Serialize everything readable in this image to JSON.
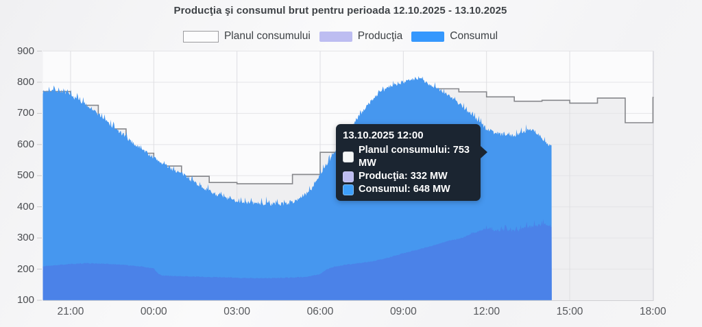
{
  "title": "Producţia şi consumul brut pentru perioada 12.10.2025 - 13.10.2025",
  "legend": {
    "items": [
      {
        "label": "Planul consumului",
        "color": "#fcfcfd",
        "border": "#9b9b9e"
      },
      {
        "label": "Producţia",
        "color": "#bdbdf1"
      },
      {
        "label": "Consumul",
        "color": "#3598fd"
      }
    ]
  },
  "tooltip": {
    "header": "13.10.2025 12:00",
    "rows": [
      {
        "text": "Planul consumului: 753 MW",
        "swatch_color": "#f5f7f7"
      },
      {
        "text": "Producţia: 332 MW",
        "swatch_color": "#bdbdf1"
      },
      {
        "text": "Consumul: 648 MW",
        "swatch_color": "#3e9ffb"
      }
    ]
  },
  "chart_data": {
    "type": "area",
    "title": "Producţia şi consumul brut pentru perioada 12.10.2025 - 13.10.2025",
    "xlabel": "",
    "ylabel": "MW",
    "ylim": [
      100,
      900
    ],
    "y_ticks": [
      100,
      200,
      300,
      400,
      500,
      600,
      700,
      800,
      900
    ],
    "x_ticks": [
      "21:00",
      "00:00",
      "03:00",
      "06:00",
      "09:00",
      "12:00",
      "15:00",
      "18:00"
    ],
    "x_hours_are_offsets_from": "20:00 on 12.10.2025",
    "x_domain_hours": [
      0,
      22.1
    ],
    "grid": true,
    "legend_position": "top",
    "measured_series_end": "~14:20 on 13.10.2025",
    "series": [
      {
        "name": "Planul consumului",
        "type": "step",
        "line_color": "#85868a",
        "fill_color": "rgba(140,140,150,0.10)",
        "points_h_mw": [
          [
            0,
            770
          ],
          [
            1,
            726
          ],
          [
            2,
            650
          ],
          [
            3,
            572
          ],
          [
            4,
            531
          ],
          [
            5,
            498
          ],
          [
            6,
            478
          ],
          [
            7,
            474
          ],
          [
            8,
            474
          ],
          [
            9,
            504
          ],
          [
            10,
            575
          ],
          [
            11,
            650
          ],
          [
            12,
            737
          ],
          [
            13,
            779
          ],
          [
            14,
            779
          ],
          [
            15,
            769
          ],
          [
            16,
            753
          ],
          [
            17,
            739
          ],
          [
            18,
            742
          ],
          [
            19,
            733
          ],
          [
            20,
            749
          ],
          [
            21,
            670
          ],
          [
            22,
            751
          ]
        ],
        "end_h": 22.1
      },
      {
        "name": "Consumul",
        "type": "area",
        "fill_color": "#4697ef",
        "noise_amp_mw": 13,
        "points_h_mw": [
          [
            0,
            768
          ],
          [
            0.3,
            773
          ],
          [
            0.7,
            770
          ],
          [
            1,
            757
          ],
          [
            1.3,
            741
          ],
          [
            1.7,
            719
          ],
          [
            2,
            696
          ],
          [
            2.5,
            658
          ],
          [
            3,
            622
          ],
          [
            3.5,
            588
          ],
          [
            4,
            557
          ],
          [
            4.5,
            528
          ],
          [
            5,
            506
          ],
          [
            5.5,
            477
          ],
          [
            6,
            450
          ],
          [
            6.5,
            430
          ],
          [
            7,
            418
          ],
          [
            7.5,
            412
          ],
          [
            8,
            409
          ],
          [
            8.5,
            407
          ],
          [
            9,
            414
          ],
          [
            9.4,
            434
          ],
          [
            9.7,
            458
          ],
          [
            10,
            505
          ],
          [
            10.3,
            545
          ],
          [
            10.7,
            592
          ],
          [
            11,
            640
          ],
          [
            11.4,
            690
          ],
          [
            11.7,
            725
          ],
          [
            12,
            755
          ],
          [
            12.4,
            780
          ],
          [
            12.7,
            792
          ],
          [
            13,
            801
          ],
          [
            13.4,
            808
          ],
          [
            13.6,
            810
          ],
          [
            14,
            791
          ],
          [
            14.4,
            772
          ],
          [
            14.7,
            753
          ],
          [
            15,
            731
          ],
          [
            15.4,
            701
          ],
          [
            15.7,
            675
          ],
          [
            16,
            650
          ],
          [
            16.3,
            637
          ],
          [
            16.7,
            629
          ],
          [
            17,
            627
          ],
          [
            17.3,
            640
          ],
          [
            17.6,
            650
          ],
          [
            17.8,
            638
          ],
          [
            18,
            616
          ],
          [
            18.2,
            601
          ],
          [
            18.35,
            592
          ]
        ],
        "end_h": 18.35
      },
      {
        "name": "Producţia",
        "type": "area",
        "fill_color": "#4b82e8",
        "noise_amp_mw": 3,
        "spiky_after_h": 14.5,
        "points_h_mw": [
          [
            0,
            209
          ],
          [
            0.5,
            213
          ],
          [
            1,
            216
          ],
          [
            1.5,
            219
          ],
          [
            2,
            218
          ],
          [
            2.5,
            216
          ],
          [
            3,
            213
          ],
          [
            3.5,
            209
          ],
          [
            4,
            202
          ],
          [
            4.15,
            186
          ],
          [
            4.3,
            179
          ],
          [
            5,
            177
          ],
          [
            6,
            175
          ],
          [
            7,
            172
          ],
          [
            8,
            171
          ],
          [
            9,
            173
          ],
          [
            9.5,
            175
          ],
          [
            10,
            184
          ],
          [
            10.2,
            197
          ],
          [
            10.5,
            208
          ],
          [
            11,
            215
          ],
          [
            11.5,
            220
          ],
          [
            12,
            227
          ],
          [
            12.5,
            238
          ],
          [
            13,
            251
          ],
          [
            13.5,
            262
          ],
          [
            14,
            274
          ],
          [
            14.5,
            287
          ],
          [
            15,
            297
          ],
          [
            15.5,
            313
          ],
          [
            16,
            330
          ],
          [
            16.3,
            322
          ],
          [
            16.7,
            327
          ],
          [
            17,
            320
          ],
          [
            17.4,
            331
          ],
          [
            17.7,
            336
          ],
          [
            18,
            342
          ],
          [
            18.35,
            337
          ]
        ],
        "end_h": 18.35
      }
    ]
  }
}
